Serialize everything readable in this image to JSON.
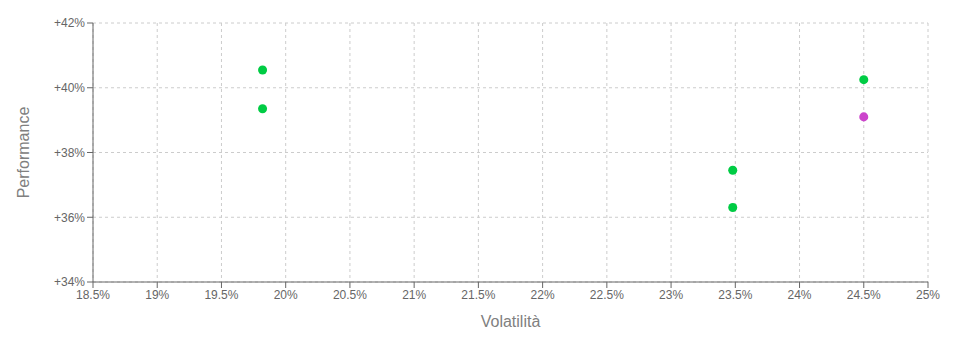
{
  "chart_data": {
    "type": "scatter",
    "xlabel": "Volatilità",
    "ylabel": "Performance",
    "x": [
      19.82,
      19.82,
      23.48,
      23.48,
      24.5,
      24.5
    ],
    "values": [
      40.55,
      39.35,
      37.45,
      36.3,
      40.25,
      39.1
    ],
    "colors": [
      "#00cc44",
      "#00cc44",
      "#00cc44",
      "#00cc44",
      "#00cc44",
      "#cc44cc"
    ],
    "xlim": [
      18.5,
      25.0
    ],
    "ylim": [
      34.0,
      42.0
    ],
    "xticks": [
      {
        "value": 18.5,
        "label": "18.5%"
      },
      {
        "value": 19.0,
        "label": "19%"
      },
      {
        "value": 19.5,
        "label": "19.5%"
      },
      {
        "value": 20.0,
        "label": "20%"
      },
      {
        "value": 20.5,
        "label": "20.5%"
      },
      {
        "value": 21.0,
        "label": "21%"
      },
      {
        "value": 21.5,
        "label": "21.5%"
      },
      {
        "value": 22.0,
        "label": "22%"
      },
      {
        "value": 22.5,
        "label": "22.5%"
      },
      {
        "value": 23.0,
        "label": "23%"
      },
      {
        "value": 23.5,
        "label": "23.5%"
      },
      {
        "value": 24.0,
        "label": "24%"
      },
      {
        "value": 24.5,
        "label": "24.5%"
      },
      {
        "value": 25.0,
        "label": "25%"
      }
    ],
    "yticks": [
      {
        "value": 34.0,
        "label": "+34%"
      },
      {
        "value": 36.0,
        "label": "+36%"
      },
      {
        "value": 38.0,
        "label": "+38%"
      },
      {
        "value": 40.0,
        "label": "+40%"
      },
      {
        "value": 42.0,
        "label": "+42%"
      }
    ],
    "grid": true
  }
}
